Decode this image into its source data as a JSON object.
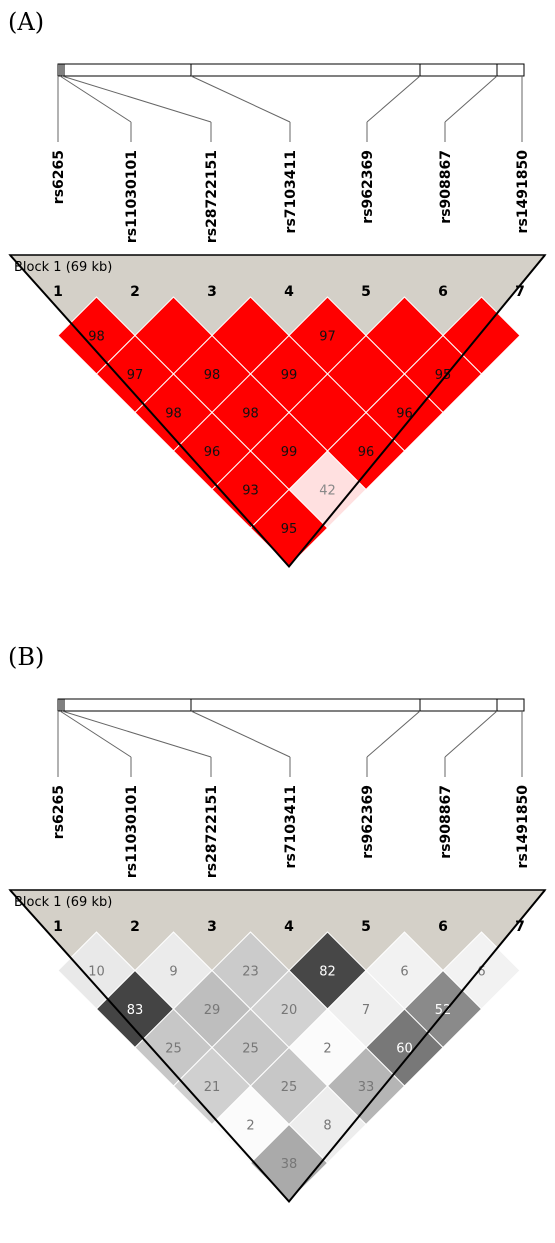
{
  "snps": [
    "rs6265",
    "rs11030101",
    "rs28722151",
    "rs7103411",
    "rs962369",
    "rs908867",
    "rs1491850"
  ],
  "panels": [
    {
      "id": "A",
      "label": "(A)",
      "block_label": "Block 1 (69 kb)",
      "indices": [
        "1",
        "2",
        "3",
        "4",
        "5",
        "6",
        "7"
      ],
      "scheme": "red",
      "cells": [
        {
          "i": 1,
          "j": 2,
          "value": "98",
          "shade": 98
        },
        {
          "i": 2,
          "j": 3,
          "value": "",
          "shade": 100
        },
        {
          "i": 3,
          "j": 4,
          "value": "",
          "shade": 100
        },
        {
          "i": 4,
          "j": 5,
          "value": "97",
          "shade": 97
        },
        {
          "i": 5,
          "j": 6,
          "value": "",
          "shade": 100
        },
        {
          "i": 6,
          "j": 7,
          "value": "",
          "shade": 100
        },
        {
          "i": 1,
          "j": 3,
          "value": "97",
          "shade": 97
        },
        {
          "i": 2,
          "j": 4,
          "value": "98",
          "shade": 98
        },
        {
          "i": 3,
          "j": 5,
          "value": "99",
          "shade": 99
        },
        {
          "i": 4,
          "j": 6,
          "value": "",
          "shade": 100
        },
        {
          "i": 5,
          "j": 7,
          "value": "95",
          "shade": 95
        },
        {
          "i": 1,
          "j": 4,
          "value": "98",
          "shade": 98
        },
        {
          "i": 2,
          "j": 5,
          "value": "98",
          "shade": 98
        },
        {
          "i": 3,
          "j": 6,
          "value": "",
          "shade": 100
        },
        {
          "i": 4,
          "j": 7,
          "value": "96",
          "shade": 96
        },
        {
          "i": 1,
          "j": 5,
          "value": "96",
          "shade": 96
        },
        {
          "i": 2,
          "j": 6,
          "value": "99",
          "shade": 99
        },
        {
          "i": 3,
          "j": 7,
          "value": "96",
          "shade": 96
        },
        {
          "i": 1,
          "j": 6,
          "value": "93",
          "shade": 93
        },
        {
          "i": 2,
          "j": 7,
          "value": "42",
          "shade": 42
        },
        {
          "i": 1,
          "j": 7,
          "value": "95",
          "shade": 95
        }
      ]
    },
    {
      "id": "B",
      "label": "(B)",
      "block_label": "Block 1 (69 kb)",
      "indices": [
        "1",
        "2",
        "3",
        "4",
        "5",
        "6",
        "7"
      ],
      "scheme": "gray",
      "cells": [
        {
          "i": 1,
          "j": 2,
          "value": "10",
          "shade": 10
        },
        {
          "i": 2,
          "j": 3,
          "value": "9",
          "shade": 9
        },
        {
          "i": 3,
          "j": 4,
          "value": "23",
          "shade": 23
        },
        {
          "i": 4,
          "j": 5,
          "value": "82",
          "shade": 82
        },
        {
          "i": 5,
          "j": 6,
          "value": "6",
          "shade": 6
        },
        {
          "i": 6,
          "j": 7,
          "value": "6",
          "shade": 6
        },
        {
          "i": 1,
          "j": 3,
          "value": "83",
          "shade": 83
        },
        {
          "i": 2,
          "j": 4,
          "value": "29",
          "shade": 29
        },
        {
          "i": 3,
          "j": 5,
          "value": "20",
          "shade": 20
        },
        {
          "i": 4,
          "j": 6,
          "value": "7",
          "shade": 7
        },
        {
          "i": 5,
          "j": 7,
          "value": "52",
          "shade": 52
        },
        {
          "i": 1,
          "j": 4,
          "value": "25",
          "shade": 25
        },
        {
          "i": 2,
          "j": 5,
          "value": "25",
          "shade": 25
        },
        {
          "i": 3,
          "j": 6,
          "value": "2",
          "shade": 2
        },
        {
          "i": 4,
          "j": 7,
          "value": "60",
          "shade": 60
        },
        {
          "i": 1,
          "j": 5,
          "value": "21",
          "shade": 21
        },
        {
          "i": 2,
          "j": 6,
          "value": "25",
          "shade": 25
        },
        {
          "i": 3,
          "j": 7,
          "value": "33",
          "shade": 33
        },
        {
          "i": 1,
          "j": 6,
          "value": "2",
          "shade": 2
        },
        {
          "i": 2,
          "j": 7,
          "value": "8",
          "shade": 8
        },
        {
          "i": 1,
          "j": 7,
          "value": "38",
          "shade": 38
        }
      ]
    }
  ],
  "colors": {
    "header_fill": "#d4d0c8",
    "red_full": "#ff0000",
    "red_low": "#ffe0e0",
    "cell_border": "#ffffff",
    "outline": "#000000"
  }
}
